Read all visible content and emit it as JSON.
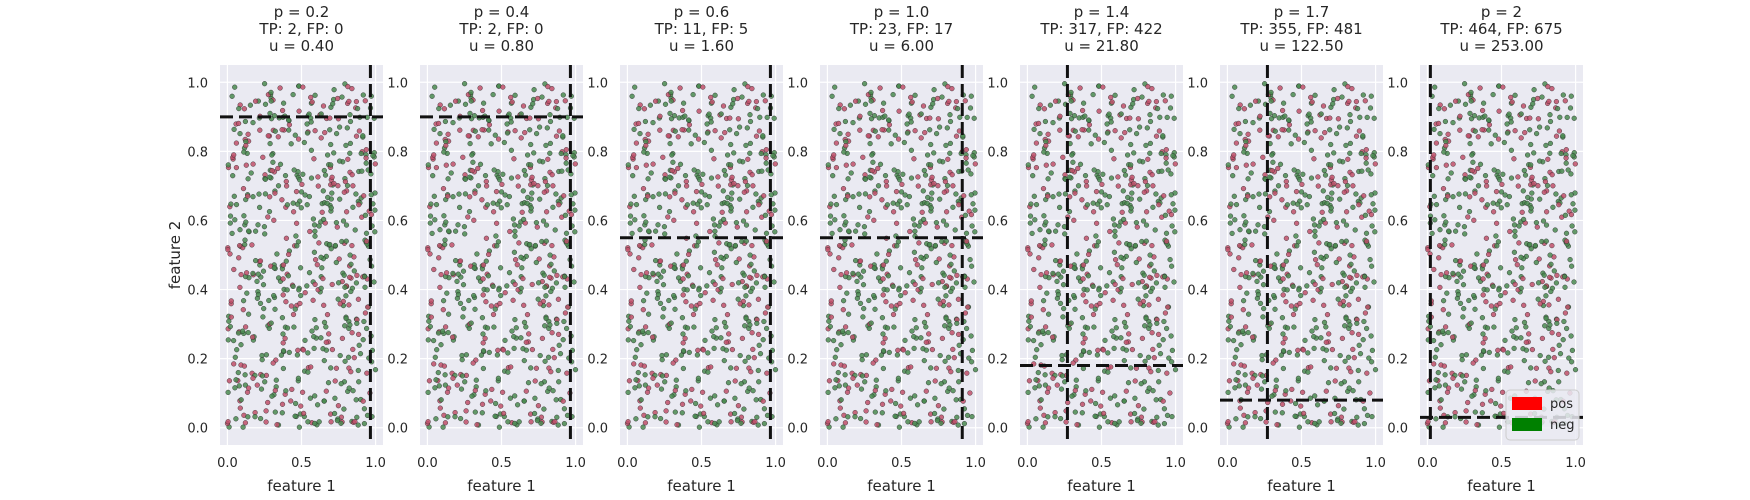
{
  "chart_data": {
    "type": "scatter",
    "xlabel": "feature 1",
    "ylabel": "feature 2",
    "xlim": [
      -0.05,
      1.05
    ],
    "ylim": [
      -0.05,
      1.05
    ],
    "xticks": [
      "0.0",
      "0.5",
      "1.0"
    ],
    "yticks": [
      "0.0",
      "0.2",
      "0.4",
      "0.6",
      "0.8",
      "1.0"
    ],
    "point_colors": {
      "pos": "#c0506a",
      "neg": "#4a8a50"
    },
    "legend": {
      "placement": "lower-right",
      "entries": [
        {
          "label": "pos",
          "color": "#ff0000"
        },
        {
          "label": "neg",
          "color": "#008000"
        }
      ]
    },
    "panels": [
      {
        "title": [
          "p = 0.2",
          "TP: 2, FP: 0",
          "u = 0.40"
        ],
        "vline": 0.965,
        "hline": 0.9
      },
      {
        "title": [
          "p = 0.4",
          "TP: 2, FP: 0",
          "u = 0.80"
        ],
        "vline": 0.965,
        "hline": 0.9
      },
      {
        "title": [
          "p = 0.6",
          "TP: 11, FP: 5",
          "u = 1.60"
        ],
        "vline": 0.965,
        "hline": 0.55
      },
      {
        "title": [
          "p = 1.0",
          "TP: 23, FP: 17",
          "u = 6.00"
        ],
        "vline": 0.91,
        "hline": 0.55
      },
      {
        "title": [
          "p = 1.4",
          "TP: 317, FP: 422",
          "u = 21.80"
        ],
        "vline": 0.27,
        "hline": 0.18
      },
      {
        "title": [
          "p = 1.7",
          "TP: 355, FP: 481",
          "u = 122.50"
        ],
        "vline": 0.27,
        "hline": 0.08
      },
      {
        "title": [
          "p = 2",
          "TP: 464, FP: 675",
          "u = 253.00"
        ],
        "vline": 0.02,
        "hline": 0.03
      }
    ]
  }
}
